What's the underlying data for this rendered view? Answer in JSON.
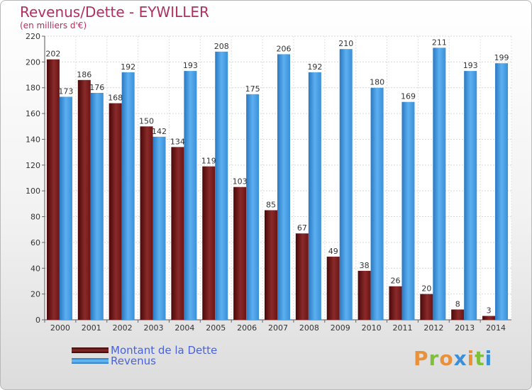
{
  "title": "Revenus/Dette - EYWILLER",
  "subtitle": "(en milliers d'€)",
  "legend": [
    {
      "label": "Montant de la Dette",
      "color": "#7a1e1e"
    },
    {
      "label": "Revenus",
      "color": "#4aa3e8"
    }
  ],
  "logo": {
    "text": "Proxiti",
    "letter_colors": [
      "#e8903a",
      "#7fbf3a",
      "#e8903a",
      "#3a8fd8",
      "#e8903a",
      "#7fbf3a",
      "#3a8fd8"
    ]
  },
  "chart_data": {
    "type": "bar",
    "categories": [
      "2000",
      "2001",
      "2002",
      "2003",
      "2004",
      "2005",
      "2006",
      "2007",
      "2008",
      "2009",
      "2010",
      "2011",
      "2012",
      "2013",
      "2014"
    ],
    "series": [
      {
        "name": "Montant de la Dette",
        "color": "#7a1e1e",
        "values": [
          202,
          186,
          168,
          150,
          134,
          119,
          103,
          85,
          67,
          49,
          38,
          26,
          20,
          8,
          3
        ]
      },
      {
        "name": "Revenus",
        "color": "#4aa3e8",
        "values": [
          173,
          176,
          192,
          142,
          193,
          208,
          175,
          206,
          192,
          210,
          180,
          169,
          211,
          193,
          199
        ]
      }
    ],
    "ylim": [
      0,
      220
    ],
    "yticks": [
      0,
      20,
      40,
      60,
      80,
      100,
      120,
      140,
      160,
      180,
      200,
      220
    ],
    "grid": true,
    "legend_position": "bottom-left"
  }
}
